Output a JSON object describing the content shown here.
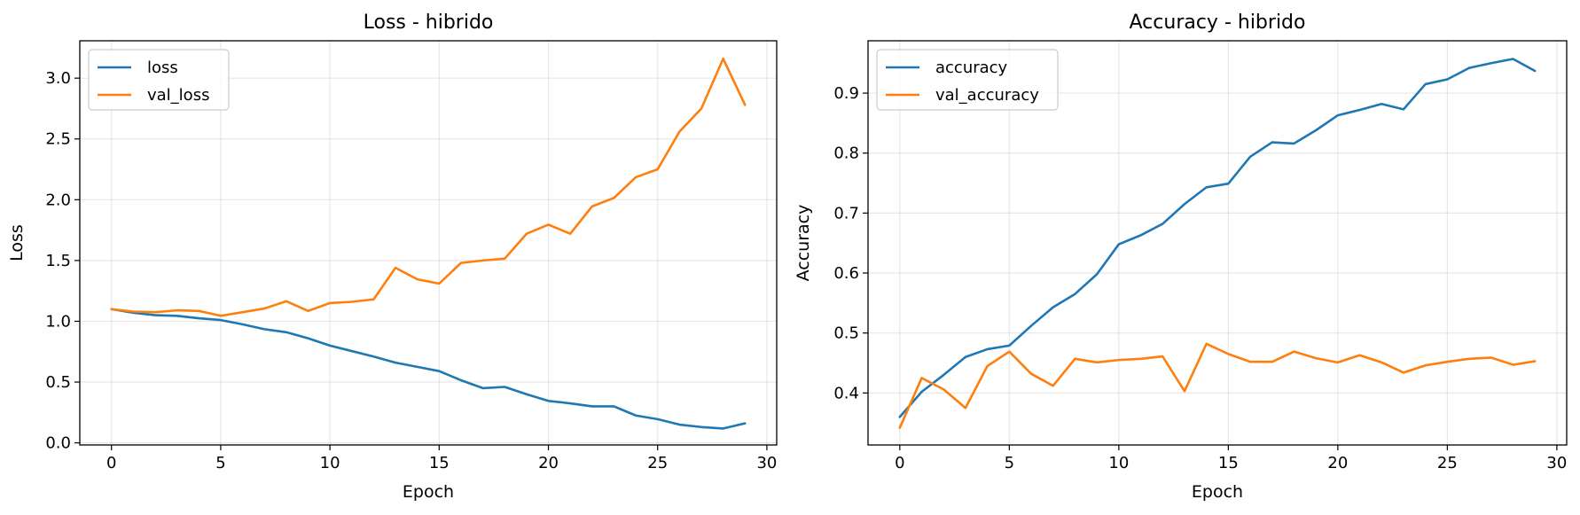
{
  "chart_data": [
    {
      "type": "line",
      "title": "Loss - hibrido",
      "xlabel": "Epoch",
      "ylabel": "Loss",
      "xlim": [
        -1.45,
        30.45
      ],
      "ylim": [
        -0.0175,
        3.3075
      ],
      "xticks": [
        0,
        5,
        10,
        15,
        20,
        25,
        30
      ],
      "xtick_labels": [
        "0",
        "5",
        "10",
        "15",
        "20",
        "25",
        "30"
      ],
      "yticks": [
        0.0,
        0.5,
        1.0,
        1.5,
        2.0,
        2.5,
        3.0
      ],
      "ytick_labels": [
        "0.0",
        "0.5",
        "1.0",
        "1.5",
        "2.0",
        "2.5",
        "3.0"
      ],
      "grid": true,
      "legend_position": "top-left",
      "x": [
        0,
        1,
        2,
        3,
        4,
        5,
        6,
        7,
        8,
        9,
        10,
        11,
        12,
        13,
        14,
        15,
        16,
        17,
        18,
        19,
        20,
        21,
        22,
        23,
        24,
        25,
        26,
        27,
        28,
        29
      ],
      "series": [
        {
          "name": "loss",
          "color": "#1f77b4",
          "values": [
            1.1,
            1.07,
            1.05,
            1.045,
            1.025,
            1.01,
            0.975,
            0.935,
            0.91,
            0.86,
            0.8,
            0.755,
            0.71,
            0.66,
            0.625,
            0.59,
            0.515,
            0.45,
            0.46,
            0.4,
            0.345,
            0.325,
            0.3,
            0.3,
            0.225,
            0.195,
            0.15,
            0.13,
            0.118,
            0.16
          ]
        },
        {
          "name": "val_loss",
          "color": "#ff7f0e",
          "values": [
            1.1,
            1.08,
            1.075,
            1.09,
            1.085,
            1.045,
            1.075,
            1.105,
            1.165,
            1.085,
            1.15,
            1.16,
            1.18,
            1.44,
            1.345,
            1.31,
            1.48,
            1.5,
            1.515,
            1.72,
            1.795,
            1.72,
            1.945,
            2.015,
            2.185,
            2.25,
            2.56,
            2.75,
            3.16,
            2.78
          ]
        }
      ]
    },
    {
      "type": "line",
      "title": "Accuracy - hibrido",
      "xlabel": "Epoch",
      "ylabel": "Accuracy",
      "xlim": [
        -1.45,
        30.45
      ],
      "ylim": [
        0.3133,
        0.9873
      ],
      "xticks": [
        0,
        5,
        10,
        15,
        20,
        25,
        30
      ],
      "xtick_labels": [
        "0",
        "5",
        "10",
        "15",
        "20",
        "25",
        "30"
      ],
      "yticks": [
        0.4,
        0.5,
        0.6,
        0.7,
        0.8,
        0.9
      ],
      "ytick_labels": [
        "0.4",
        "0.5",
        "0.6",
        "0.7",
        "0.8",
        "0.9"
      ],
      "grid": true,
      "legend_position": "top-left",
      "x": [
        0,
        1,
        2,
        3,
        4,
        5,
        6,
        7,
        8,
        9,
        10,
        11,
        12,
        13,
        14,
        15,
        16,
        17,
        18,
        19,
        20,
        21,
        22,
        23,
        24,
        25,
        26,
        27,
        28,
        29
      ],
      "series": [
        {
          "name": "accuracy",
          "color": "#1f77b4",
          "values": [
            0.36,
            0.402,
            0.43,
            0.46,
            0.473,
            0.479,
            0.512,
            0.543,
            0.565,
            0.598,
            0.648,
            0.663,
            0.682,
            0.715,
            0.743,
            0.749,
            0.794,
            0.818,
            0.816,
            0.838,
            0.863,
            0.872,
            0.882,
            0.873,
            0.915,
            0.923,
            0.942,
            0.95,
            0.957,
            0.937
          ]
        },
        {
          "name": "val_accuracy",
          "color": "#ff7f0e",
          "values": [
            0.342,
            0.425,
            0.406,
            0.375,
            0.445,
            0.469,
            0.432,
            0.412,
            0.457,
            0.451,
            0.455,
            0.457,
            0.461,
            0.403,
            0.482,
            0.465,
            0.452,
            0.452,
            0.469,
            0.458,
            0.451,
            0.463,
            0.451,
            0.434,
            0.446,
            0.452,
            0.457,
            0.459,
            0.447,
            0.453
          ]
        }
      ]
    }
  ]
}
